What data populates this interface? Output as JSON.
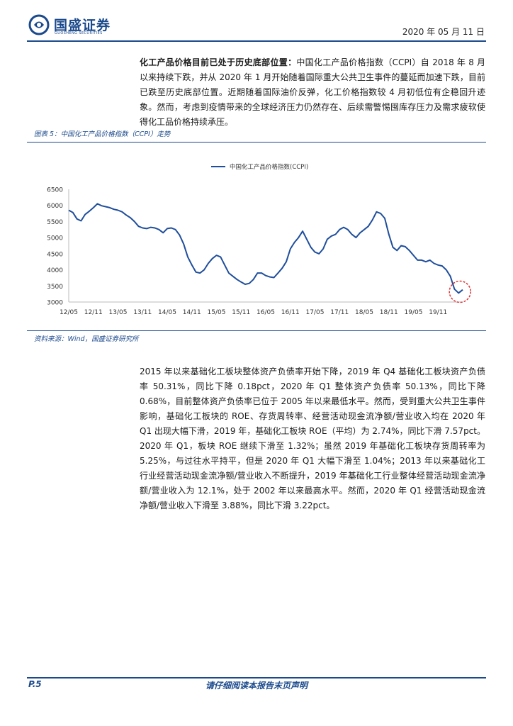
{
  "header": {
    "logo_cn": "国盛证券",
    "logo_en": "GUOSHENG SECURITIES",
    "date": "2020 年 05 月 11 日"
  },
  "intro": {
    "lead": "化工产品价格目前已处于历史底部位置：",
    "body": "中国化工产品价格指数（CCPI）自 2018 年 8 月以来持续下跌，并从 2020 年 1 月开始随着国际重大公共卫生事件的蔓延而加速下跌，目前已跌至历史底部位置。近期随着国际油价反弹，化工价格指数较 4 月初低位有企稳回升迹象。然而，考虑到疫情带来的全球经济压力仍然存在、后续需警惕囤库存压力及需求疲软使得化工品价格持续承压。"
  },
  "figure": {
    "label": "图表 5：中国化工产品价格指数（CCPI）走势",
    "source": "资料来源：Wind，国盛证券研究所"
  },
  "chart_data": {
    "type": "line",
    "title": "",
    "xlabel": "",
    "ylabel": "",
    "legend": "top-center",
    "grid": false,
    "ylim": [
      3000,
      6500
    ],
    "yticks": [
      3000,
      3500,
      4000,
      4500,
      5000,
      5500,
      6000,
      6500
    ],
    "xticks": [
      "12/05",
      "12/11",
      "13/05",
      "13/11",
      "14/05",
      "14/11",
      "15/05",
      "15/11",
      "16/05",
      "16/11",
      "17/05",
      "17/11",
      "18/05",
      "18/11",
      "19/05",
      "19/11"
    ],
    "annotation": "dashed red circle highlighting 2020 low",
    "series": [
      {
        "name": "中国化工产品价格指数(CCPI)",
        "color": "#1f4e9c",
        "points": [
          [
            "2012-05",
            5850
          ],
          [
            "2012-06",
            5780
          ],
          [
            "2012-07",
            5580
          ],
          [
            "2012-08",
            5520
          ],
          [
            "2012-09",
            5720
          ],
          [
            "2012-10",
            5820
          ],
          [
            "2012-11",
            5930
          ],
          [
            "2012-12",
            6050
          ],
          [
            "2013-01",
            5990
          ],
          [
            "2013-02",
            5960
          ],
          [
            "2013-03",
            5930
          ],
          [
            "2013-04",
            5880
          ],
          [
            "2013-05",
            5850
          ],
          [
            "2013-06",
            5800
          ],
          [
            "2013-07",
            5700
          ],
          [
            "2013-08",
            5620
          ],
          [
            "2013-09",
            5500
          ],
          [
            "2013-10",
            5350
          ],
          [
            "2013-11",
            5300
          ],
          [
            "2013-12",
            5280
          ],
          [
            "2014-01",
            5320
          ],
          [
            "2014-02",
            5300
          ],
          [
            "2014-03",
            5250
          ],
          [
            "2014-04",
            5150
          ],
          [
            "2014-05",
            5280
          ],
          [
            "2014-06",
            5300
          ],
          [
            "2014-07",
            5250
          ],
          [
            "2014-08",
            5080
          ],
          [
            "2014-09",
            4800
          ],
          [
            "2014-10",
            4400
          ],
          [
            "2014-11",
            4150
          ],
          [
            "2014-12",
            3930
          ],
          [
            "2015-01",
            3900
          ],
          [
            "2015-02",
            4000
          ],
          [
            "2015-03",
            4200
          ],
          [
            "2015-04",
            4350
          ],
          [
            "2015-05",
            4450
          ],
          [
            "2015-06",
            4400
          ],
          [
            "2015-07",
            4150
          ],
          [
            "2015-08",
            3900
          ],
          [
            "2015-09",
            3800
          ],
          [
            "2015-10",
            3700
          ],
          [
            "2015-11",
            3620
          ],
          [
            "2015-12",
            3550
          ],
          [
            "2016-01",
            3580
          ],
          [
            "2016-02",
            3700
          ],
          [
            "2016-03",
            3900
          ],
          [
            "2016-04",
            3900
          ],
          [
            "2016-05",
            3820
          ],
          [
            "2016-06",
            3780
          ],
          [
            "2016-07",
            3760
          ],
          [
            "2016-08",
            3900
          ],
          [
            "2016-09",
            4050
          ],
          [
            "2016-10",
            4250
          ],
          [
            "2016-11",
            4650
          ],
          [
            "2016-12",
            4850
          ],
          [
            "2017-01",
            5000
          ],
          [
            "2017-02",
            5200
          ],
          [
            "2017-03",
            4950
          ],
          [
            "2017-04",
            4700
          ],
          [
            "2017-05",
            4550
          ],
          [
            "2017-06",
            4500
          ],
          [
            "2017-07",
            4650
          ],
          [
            "2017-08",
            4950
          ],
          [
            "2017-09",
            5050
          ],
          [
            "2017-10",
            5100
          ],
          [
            "2017-11",
            5250
          ],
          [
            "2017-12",
            5320
          ],
          [
            "2018-01",
            5250
          ],
          [
            "2018-02",
            5100
          ],
          [
            "2018-03",
            5000
          ],
          [
            "2018-04",
            5150
          ],
          [
            "2018-05",
            5250
          ],
          [
            "2018-06",
            5350
          ],
          [
            "2018-07",
            5550
          ],
          [
            "2018-08",
            5800
          ],
          [
            "2018-09",
            5750
          ],
          [
            "2018-10",
            5600
          ],
          [
            "2018-11",
            5100
          ],
          [
            "2018-12",
            4700
          ],
          [
            "2019-01",
            4600
          ],
          [
            "2019-02",
            4750
          ],
          [
            "2019-03",
            4720
          ],
          [
            "2019-04",
            4600
          ],
          [
            "2019-05",
            4450
          ],
          [
            "2019-06",
            4300
          ],
          [
            "2019-07",
            4300
          ],
          [
            "2019-08",
            4250
          ],
          [
            "2019-09",
            4300
          ],
          [
            "2019-10",
            4200
          ],
          [
            "2019-11",
            4150
          ],
          [
            "2019-12",
            4120
          ],
          [
            "2020-01",
            4000
          ],
          [
            "2020-02",
            3800
          ],
          [
            "2020-03",
            3400
          ],
          [
            "2020-04",
            3280
          ],
          [
            "2020-05",
            3380
          ]
        ]
      }
    ]
  },
  "analysis": {
    "body": "2015 年以来基础化工板块整体资产负债率开始下降，2019 年 Q4 基础化工板块资产负债率 50.31%，同比下降 0.18pct，2020 年 Q1 整体资产负债率 50.13%，同比下降 0.68%，目前整体资产负债率已位于 2005 年以来最低水平。然而，受到重大公共卫生事件影响，基础化工板块的 ROE、存货周转率、经营活动现金流净额/营业收入均在 2020 年 Q1 出现大幅下滑，2019 年，基础化工板块 ROE（平均）为 2.74%，同比下滑 7.57pct。2020 年 Q1，板块 ROE 继续下滑至 1.32%；虽然 2019 年基础化工板块存货周转率为 5.25%，与过往水平持平，但是 2020 年 Q1 大幅下滑至 1.04%；2013 年以来基础化工行业经营活动现金流净额/营业收入不断提升，2019 年基础化工行业整体经营活动现金流净额/营业收入为 12.1%，处于 2002 年以来最高水平。然而，2020 年 Q1 经营活动现金流净额/营业收入下滑至 3.88%，同比下滑 3.22pct。"
  },
  "footer": {
    "page": "P.5",
    "note": "请仔细阅读本报告末页声明"
  }
}
